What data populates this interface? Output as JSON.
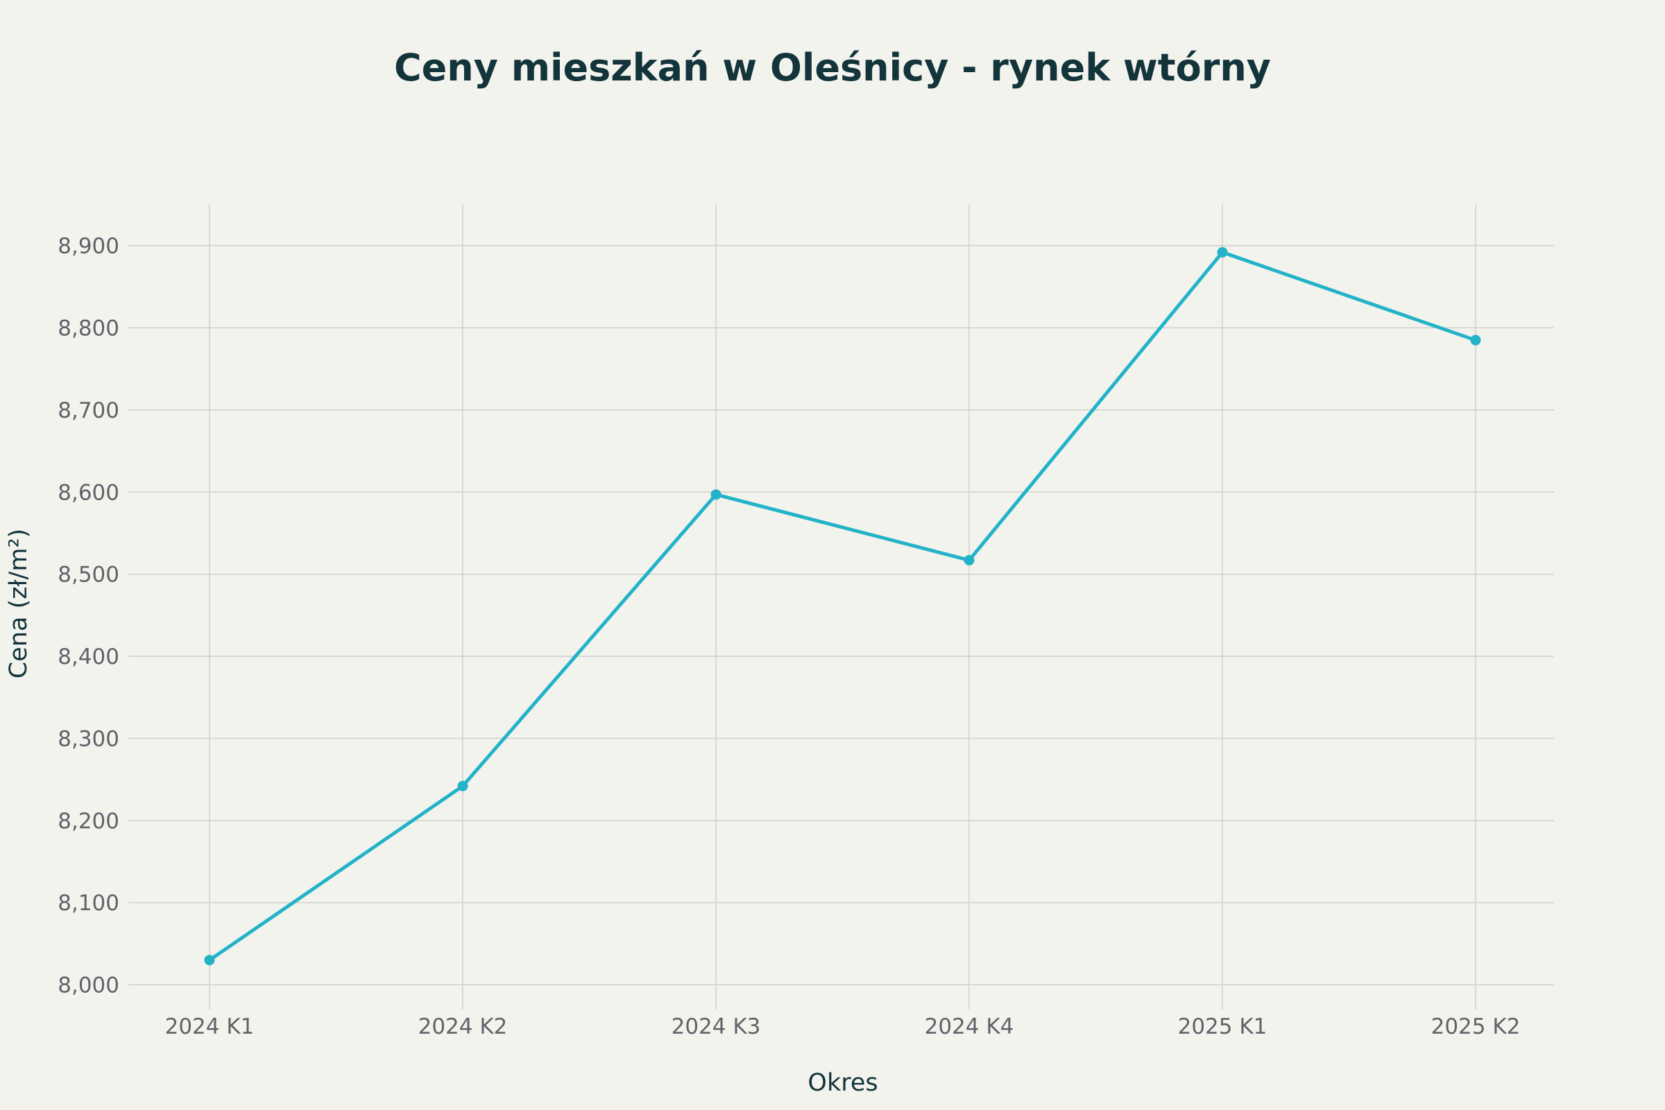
{
  "chart_data": {
    "type": "line",
    "title": "Ceny mieszkań w Oleśnicy - rynek wtórny",
    "xlabel": "Okres",
    "ylabel": "Cena (zł/m²)",
    "categories": [
      "2024 K1",
      "2024 K2",
      "2024 K3",
      "2024 K4",
      "2025 K1",
      "2025 K2"
    ],
    "series": [
      {
        "color": "#22b3c8",
        "values": [
          8030,
          8242,
          8597,
          8517,
          8892,
          8785
        ]
      }
    ],
    "ylim": [
      7970,
      8950
    ],
    "yticks": [
      8000,
      8100,
      8200,
      8300,
      8400,
      8500,
      8600,
      8700,
      8800,
      8900
    ],
    "ytick_labels": [
      "8,000",
      "8,100",
      "8,200",
      "8,300",
      "8,400",
      "8,500",
      "8,600",
      "8,700",
      "8,800",
      "8,900"
    ],
    "grid": true,
    "legend": "none"
  }
}
